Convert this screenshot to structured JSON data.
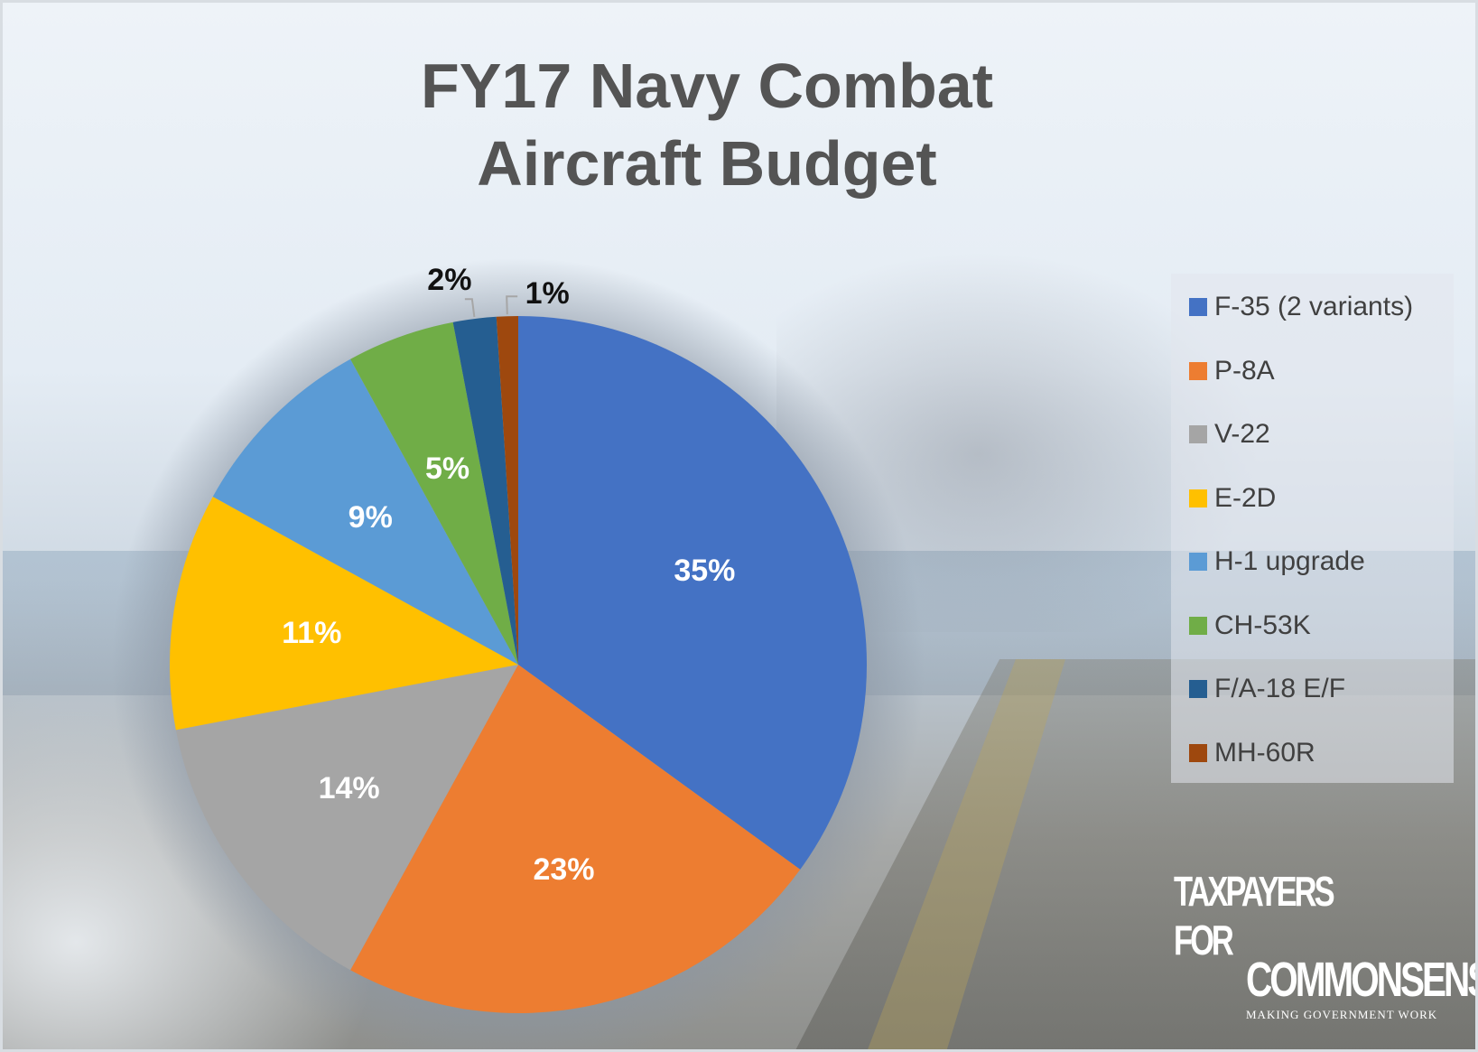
{
  "chart_data": {
    "type": "pie",
    "title_lines": [
      "FY17 Navy Combat",
      "Aircraft Budget"
    ],
    "categories": [
      "F-35 (2 variants)",
      "P-8A",
      "V-22",
      "E-2D",
      "H-1 upgrade",
      "CH-53K",
      "F/A-18 E/F",
      "MH-60R"
    ],
    "values": [
      35,
      23,
      14,
      11,
      9,
      5,
      2,
      1
    ],
    "labels": [
      "35%",
      "23%",
      "14%",
      "11%",
      "9%",
      "5%",
      "2%",
      "1%"
    ],
    "colors": [
      "#4472c4",
      "#ed7d31",
      "#a5a5a5",
      "#ffc000",
      "#5b9bd5",
      "#70ad47",
      "#255e91",
      "#9e480e"
    ],
    "start": "12 o'clock",
    "direction": "clockwise",
    "legend_position": "right"
  },
  "logo": {
    "line1": "TAXPAYERS FOR",
    "line2": "COMMONSENSE",
    "tagline": "MAKING GOVERNMENT WORK"
  }
}
